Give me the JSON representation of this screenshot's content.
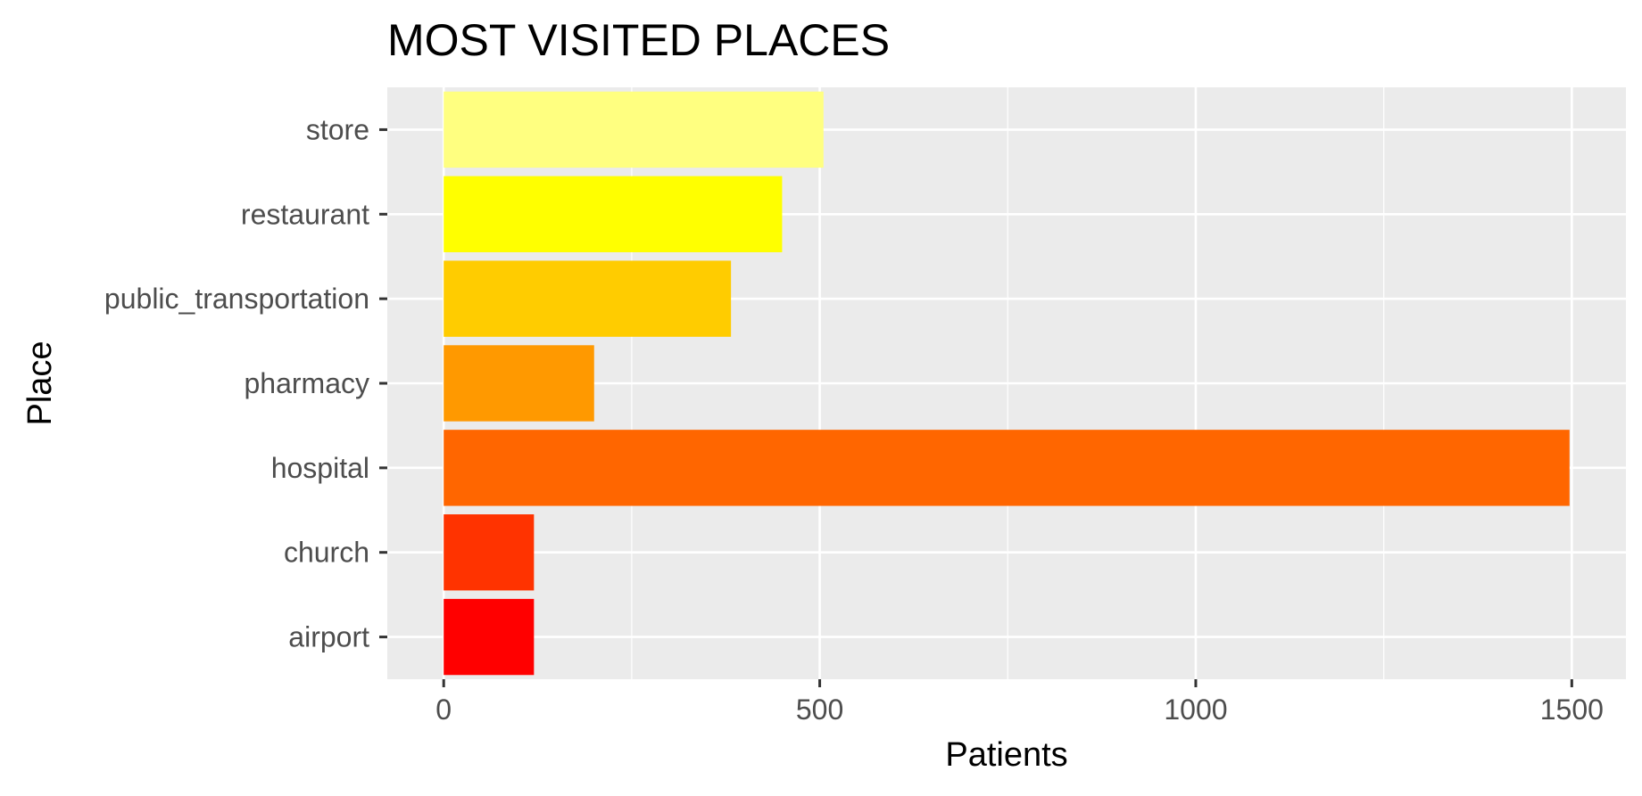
{
  "chart_data": {
    "type": "bar",
    "orientation": "horizontal",
    "title": "MOST VISITED PLACES",
    "xlabel": "Patients",
    "ylabel": "Place",
    "categories": [
      "store",
      "restaurant",
      "public_transportation",
      "pharmacy",
      "hospital",
      "church",
      "airport"
    ],
    "values": [
      505,
      450,
      382,
      200,
      1497,
      120,
      120
    ],
    "colors": [
      "#FFFF80",
      "#FFFF00",
      "#FFCC00",
      "#FF9900",
      "#FF6600",
      "#FF3300",
      "#FF0000"
    ],
    "xlim": [
      -75,
      1572
    ],
    "xticks": [
      "0",
      "500",
      "1000",
      "1500"
    ],
    "grid": true,
    "background": "#EBEBEB",
    "legend": "none"
  }
}
